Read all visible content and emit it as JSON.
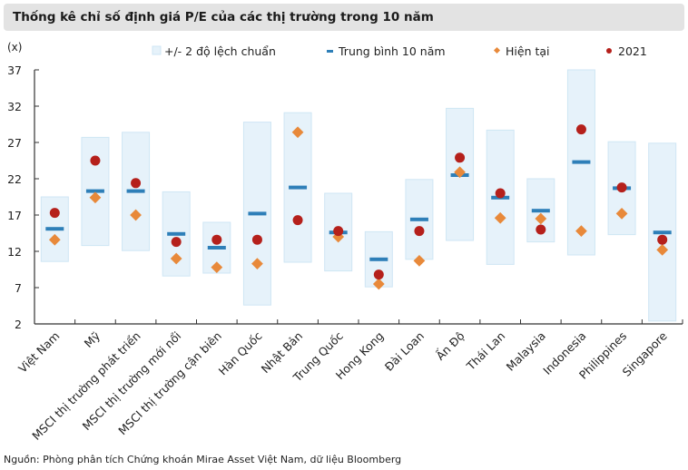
{
  "header": {
    "title": "Thống kê chỉ số định giá P/E của các thị trường trong 10 năm"
  },
  "footer": {
    "source": "Nguồn: Phòng phân tích Chứng khoán Mirae Asset Việt Nam, dữ liệu Bloomberg"
  },
  "chart_data": {
    "type": "range-box with markers",
    "ylabel": "(x)",
    "ylim": [
      2,
      37
    ],
    "yticks": [
      2,
      7,
      12,
      17,
      22,
      27,
      32,
      37
    ],
    "legend_position": "top",
    "legend": [
      "+/- 2 độ lệch chuẩn",
      "Trung bình 10 năm",
      "Hiện tại",
      "2021"
    ],
    "colors": {
      "band": "#e6f2fa",
      "band_border": "#cfe6f4",
      "mean": "#2e7fb8",
      "current": "#e8893a",
      "y2021": "#b5201b",
      "axis": "#333333"
    },
    "categories": [
      "Việt Nam",
      "Mỹ",
      "MSCI thị trường phát triển",
      "MSCI thị trường mới nổi",
      "MSCI thị trường cận biên",
      "Hàn Quốc",
      "Nhật Bản",
      "Trung Quốc",
      "Hong Kong",
      "Đài Loan",
      "Ấn Độ",
      "Thái Lan",
      "Malaysia",
      "Indonesia",
      "Philippines",
      "Singapore"
    ],
    "series": [
      {
        "name": "+/- 2 độ lệch chuẩn",
        "low": [
          10.6,
          12.8,
          12.1,
          8.6,
          9.0,
          4.6,
          10.5,
          9.3,
          7.1,
          10.9,
          13.5,
          10.2,
          13.3,
          11.5,
          14.3,
          2.4
        ],
        "high": [
          19.5,
          27.7,
          28.4,
          20.2,
          16.0,
          29.8,
          31.1,
          20.0,
          14.7,
          21.9,
          31.7,
          28.7,
          22.0,
          37.0,
          27.1,
          26.9
        ]
      },
      {
        "name": "Trung bình 10 năm",
        "values": [
          15.1,
          20.3,
          20.3,
          14.4,
          12.5,
          17.2,
          20.8,
          14.6,
          10.9,
          16.4,
          22.5,
          19.4,
          17.6,
          24.3,
          20.7,
          14.6
        ]
      },
      {
        "name": "Hiện tại",
        "values": [
          13.6,
          19.4,
          17.0,
          11.0,
          9.8,
          10.3,
          28.4,
          14.0,
          7.5,
          10.7,
          22.9,
          16.6,
          16.5,
          14.8,
          17.2,
          12.2
        ]
      },
      {
        "name": "2021",
        "values": [
          17.3,
          24.5,
          21.4,
          13.3,
          13.6,
          13.6,
          16.3,
          14.8,
          8.8,
          14.8,
          24.9,
          20.0,
          15.0,
          28.8,
          20.8,
          13.6
        ]
      }
    ]
  }
}
